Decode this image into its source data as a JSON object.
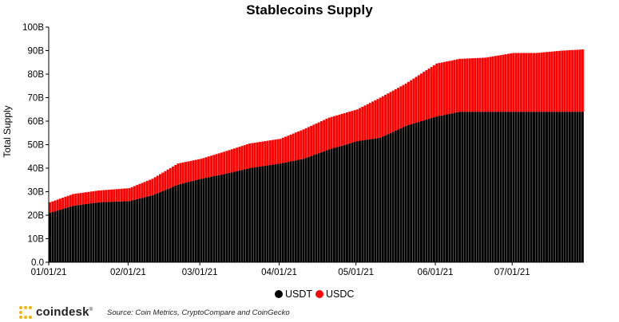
{
  "chart_data": {
    "type": "bar",
    "stacked": true,
    "title": "Stablecoins Supply",
    "ylabel": "Total Supply",
    "xlabel": "",
    "ylim": [
      0,
      100
    ],
    "yticks": [
      "0.0",
      "10B",
      "20B",
      "30B",
      "40B",
      "50B",
      "60B",
      "70B",
      "80B",
      "90B",
      "100B"
    ],
    "x_tick_labels": [
      "01/01/21",
      "02/01/21",
      "03/01/21",
      "04/01/21",
      "05/01/21",
      "06/01/21",
      "07/01/21"
    ],
    "x_tick_dates": [
      "2021-01-01",
      "2021-02-01",
      "2021-03-01",
      "2021-04-01",
      "2021-05-01",
      "2021-06-01",
      "2021-07-01"
    ],
    "x_date_range": [
      "2021-01-01",
      "2021-07-28"
    ],
    "grid": false,
    "legend": "bottom-center",
    "anchor_dates": [
      "2021-01-01",
      "2021-01-10",
      "2021-01-20",
      "2021-02-01",
      "2021-02-10",
      "2021-02-20",
      "2021-03-01",
      "2021-03-10",
      "2021-03-20",
      "2021-04-01",
      "2021-04-10",
      "2021-04-20",
      "2021-05-01",
      "2021-05-10",
      "2021-05-20",
      "2021-06-01",
      "2021-06-10",
      "2021-06-20",
      "2021-07-01",
      "2021-07-10",
      "2021-07-20",
      "2021-07-28"
    ],
    "series": [
      {
        "name": "USDT",
        "color": "#000000",
        "values": [
          21,
          24,
          25.5,
          26,
          28.5,
          33,
          35.5,
          37.5,
          40,
          42,
          44,
          48,
          51.5,
          53,
          58,
          62,
          64,
          64,
          64,
          64,
          64,
          64
        ]
      },
      {
        "name": "USDC",
        "color": "#ff0000",
        "values": [
          4.5,
          5,
          5,
          5.5,
          7,
          9,
          8.5,
          9.5,
          10.5,
          10.5,
          12.5,
          13.5,
          13.5,
          17,
          18,
          22.5,
          22.5,
          23,
          25,
          25,
          26,
          26.5
        ]
      }
    ]
  },
  "legend": {
    "items": [
      {
        "label": "USDT",
        "color": "#000000"
      },
      {
        "label": "USDC",
        "color": "#ff0000"
      }
    ]
  },
  "footer": {
    "brand": "coindesk",
    "brand_mark": "®",
    "source": "Source: Coin Metrics, CryptoCompare and CoinGecko",
    "accent": "#f4b400"
  }
}
